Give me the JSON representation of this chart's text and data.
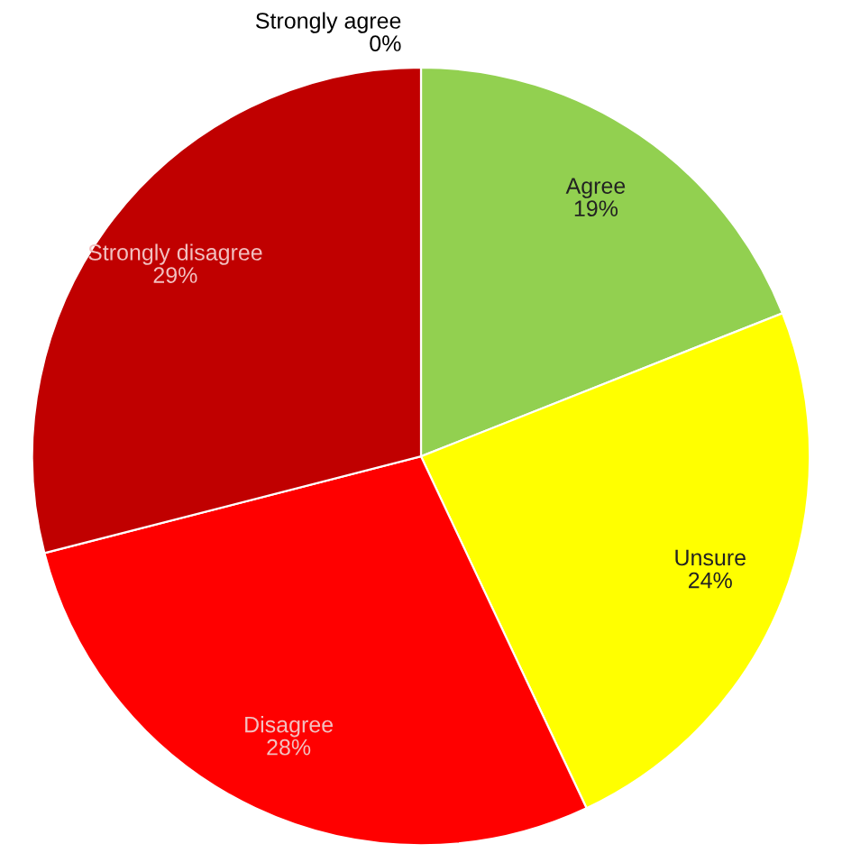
{
  "chart_data": {
    "type": "pie",
    "categories": [
      "Strongly agree",
      "Agree",
      "Unsure",
      "Disagree",
      "Strongly disagree"
    ],
    "values": [
      0,
      19,
      24,
      28,
      29
    ],
    "colors": [
      "#00b050",
      "#92d050",
      "#ffff00",
      "#ff0000",
      "#c00000"
    ],
    "value_labels": [
      "0%",
      "19%",
      "24%",
      "28%",
      "29%"
    ],
    "legend": false
  }
}
